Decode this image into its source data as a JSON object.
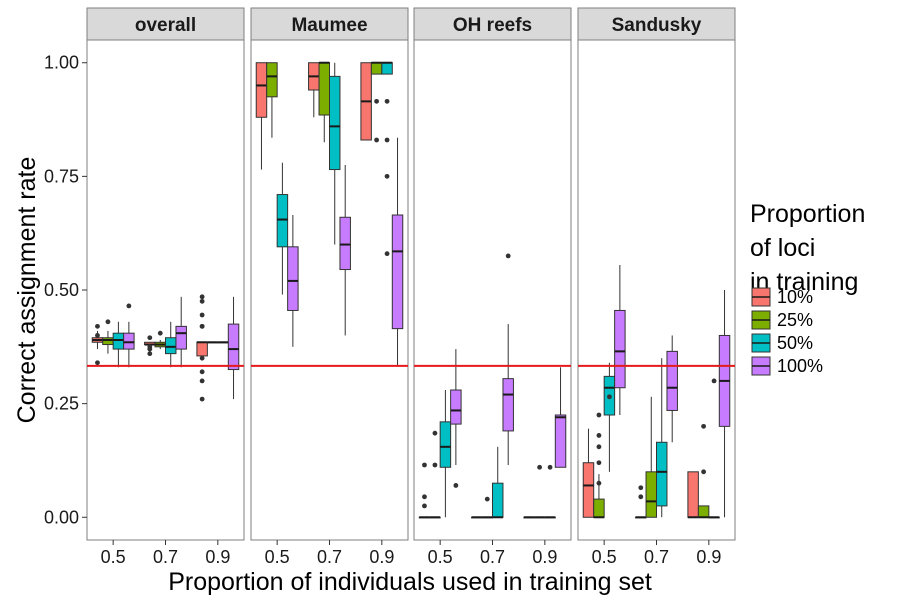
{
  "chart_data": {
    "type": "boxplot",
    "ylabel": "Correct assignment rate",
    "xlabel": "Proportion of individuals used in training set",
    "ylim": [
      -0.05,
      1.05
    ],
    "yticks": [
      "0.00",
      "0.25",
      "0.50",
      "0.75",
      "1.00"
    ],
    "xcategories": [
      "0.5",
      "0.7",
      "0.9"
    ],
    "reference_line": {
      "y": 0.333,
      "color": "#e41a1c"
    },
    "grid": false,
    "legend": {
      "title_lines": [
        "Proportion",
        "of loci",
        "in training"
      ],
      "position": "right",
      "entries": [
        {
          "name": "10%",
          "color": "#F8766D"
        },
        {
          "name": "25%",
          "color": "#7CAE00"
        },
        {
          "name": "50%",
          "color": "#00BFC4"
        },
        {
          "name": "100%",
          "color": "#C77CFF"
        }
      ]
    },
    "panels": [
      {
        "title": "overall",
        "groups": [
          {
            "x": "0.5",
            "boxes": [
              {
                "series": "10%",
                "q1": 0.385,
                "median": 0.39,
                "q3": 0.395,
                "wlo": 0.37,
                "whi": 0.41,
                "outliers": [
                  0.42,
                  0.4,
                  0.34
                ]
              },
              {
                "series": "25%",
                "q1": 0.38,
                "median": 0.39,
                "q3": 0.395,
                "wlo": 0.36,
                "whi": 0.41,
                "outliers": [
                  0.43
                ]
              },
              {
                "series": "50%",
                "q1": 0.37,
                "median": 0.39,
                "q3": 0.405,
                "wlo": 0.33,
                "whi": 0.43,
                "outliers": []
              },
              {
                "series": "100%",
                "q1": 0.37,
                "median": 0.385,
                "q3": 0.405,
                "wlo": 0.33,
                "whi": 0.43,
                "outliers": [
                  0.465
                ]
              }
            ]
          },
          {
            "x": "0.7",
            "boxes": [
              {
                "series": "10%",
                "q1": 0.38,
                "median": 0.38,
                "q3": 0.385,
                "wlo": 0.38,
                "whi": 0.385,
                "outliers": [
                  0.395,
                  0.375,
                  0.37,
                  0.36
                ]
              },
              {
                "series": "25%",
                "q1": 0.375,
                "median": 0.38,
                "q3": 0.385,
                "wlo": 0.37,
                "whi": 0.39,
                "outliers": [
                  0.405
                ]
              },
              {
                "series": "50%",
                "q1": 0.36,
                "median": 0.375,
                "q3": 0.395,
                "wlo": 0.33,
                "whi": 0.43,
                "outliers": []
              },
              {
                "series": "100%",
                "q1": 0.37,
                "median": 0.405,
                "q3": 0.42,
                "wlo": 0.33,
                "whi": 0.485,
                "outliers": []
              }
            ]
          },
          {
            "x": "0.9",
            "boxes": [
              {
                "series": "10%",
                "q1": 0.355,
                "median": 0.385,
                "q3": 0.385,
                "wlo": 0.355,
                "whi": 0.385,
                "outliers": [
                  0.485,
                  0.475,
                  0.445,
                  0.42,
                  0.42,
                  0.35,
                  0.32,
                  0.3,
                  0.26
                ]
              },
              {
                "series": "25%",
                "q1": 0.385,
                "median": 0.385,
                "q3": 0.385,
                "wlo": 0.385,
                "whi": 0.385,
                "outliers": []
              },
              {
                "series": "50%",
                "q1": 0.385,
                "median": 0.385,
                "q3": 0.385,
                "wlo": 0.385,
                "whi": 0.385,
                "outliers": []
              },
              {
                "series": "100%",
                "q1": 0.325,
                "median": 0.37,
                "q3": 0.425,
                "wlo": 0.26,
                "whi": 0.485,
                "outliers": []
              }
            ]
          }
        ]
      },
      {
        "title": "Maumee",
        "groups": [
          {
            "x": "0.5",
            "boxes": [
              {
                "series": "10%",
                "q1": 0.88,
                "median": 0.95,
                "q3": 1.0,
                "wlo": 0.765,
                "whi": 1.0,
                "outliers": []
              },
              {
                "series": "25%",
                "q1": 0.925,
                "median": 0.97,
                "q3": 1.0,
                "wlo": 0.835,
                "whi": 1.0,
                "outliers": []
              },
              {
                "series": "50%",
                "q1": 0.595,
                "median": 0.655,
                "q3": 0.71,
                "wlo": 0.49,
                "whi": 0.78,
                "outliers": []
              },
              {
                "series": "100%",
                "q1": 0.455,
                "median": 0.52,
                "q3": 0.595,
                "wlo": 0.375,
                "whi": 0.665,
                "outliers": []
              }
            ]
          },
          {
            "x": "0.7",
            "boxes": [
              {
                "series": "10%",
                "q1": 0.94,
                "median": 0.97,
                "q3": 1.0,
                "wlo": 0.88,
                "whi": 1.0,
                "outliers": []
              },
              {
                "series": "25%",
                "q1": 0.885,
                "median": 1.0,
                "q3": 1.0,
                "wlo": 0.825,
                "whi": 1.0,
                "outliers": []
              },
              {
                "series": "50%",
                "q1": 0.765,
                "median": 0.86,
                "q3": 0.97,
                "wlo": 0.6,
                "whi": 1.0,
                "outliers": []
              },
              {
                "series": "100%",
                "q1": 0.545,
                "median": 0.6,
                "q3": 0.66,
                "wlo": 0.4,
                "whi": 0.775,
                "outliers": []
              }
            ]
          },
          {
            "x": "0.9",
            "boxes": [
              {
                "series": "10%",
                "q1": 0.83,
                "median": 0.915,
                "q3": 1.0,
                "wlo": 0.83,
                "whi": 1.0,
                "outliers": []
              },
              {
                "series": "25%",
                "q1": 0.975,
                "median": 1.0,
                "q3": 1.0,
                "wlo": 0.975,
                "whi": 1.0,
                "outliers": [
                  0.915,
                  0.83
                ]
              },
              {
                "series": "50%",
                "q1": 0.975,
                "median": 1.0,
                "q3": 1.0,
                "wlo": 0.975,
                "whi": 1.0,
                "outliers": [
                  0.915,
                  0.83,
                  0.75,
                  0.58
                ]
              },
              {
                "series": "100%",
                "q1": 0.415,
                "median": 0.585,
                "q3": 0.665,
                "wlo": 0.335,
                "whi": 0.835,
                "outliers": []
              }
            ]
          }
        ]
      },
      {
        "title": "OH reefs",
        "groups": [
          {
            "x": "0.5",
            "boxes": [
              {
                "series": "10%",
                "q1": 0.0,
                "median": 0.0,
                "q3": 0.0,
                "wlo": 0.0,
                "whi": 0.0,
                "outliers": [
                  0.115,
                  0.045,
                  0.025
                ]
              },
              {
                "series": "25%",
                "q1": 0.0,
                "median": 0.0,
                "q3": 0.0,
                "wlo": 0.0,
                "whi": 0.0,
                "outliers": [
                  0.185,
                  0.115
                ]
              },
              {
                "series": "50%",
                "q1": 0.11,
                "median": 0.155,
                "q3": 0.21,
                "wlo": 0.0,
                "whi": 0.28,
                "outliers": []
              },
              {
                "series": "100%",
                "q1": 0.205,
                "median": 0.235,
                "q3": 0.28,
                "wlo": 0.115,
                "whi": 0.37,
                "outliers": [
                  0.07
                ]
              }
            ]
          },
          {
            "x": "0.7",
            "boxes": [
              {
                "series": "10%",
                "q1": 0.0,
                "median": 0.0,
                "q3": 0.0,
                "wlo": 0.0,
                "whi": 0.0,
                "outliers": []
              },
              {
                "series": "25%",
                "q1": 0.0,
                "median": 0.0,
                "q3": 0.0,
                "wlo": 0.0,
                "whi": 0.0,
                "outliers": [
                  0.04
                ]
              },
              {
                "series": "50%",
                "q1": 0.0,
                "median": 0.0,
                "q3": 0.075,
                "wlo": 0.0,
                "whi": 0.155,
                "outliers": []
              },
              {
                "series": "100%",
                "q1": 0.19,
                "median": 0.27,
                "q3": 0.305,
                "wlo": 0.115,
                "whi": 0.425,
                "outliers": [
                  0.575
                ]
              }
            ]
          },
          {
            "x": "0.9",
            "boxes": [
              {
                "series": "10%",
                "q1": 0.0,
                "median": 0.0,
                "q3": 0.0,
                "wlo": 0.0,
                "whi": 0.0,
                "outliers": []
              },
              {
                "series": "25%",
                "q1": 0.0,
                "median": 0.0,
                "q3": 0.0,
                "wlo": 0.0,
                "whi": 0.0,
                "outliers": [
                  0.11
                ]
              },
              {
                "series": "50%",
                "q1": 0.0,
                "median": 0.0,
                "q3": 0.0,
                "wlo": 0.0,
                "whi": 0.0,
                "outliers": [
                  0.11
                ]
              },
              {
                "series": "100%",
                "q1": 0.11,
                "median": 0.22,
                "q3": 0.225,
                "wlo": 0.11,
                "whi": 0.33,
                "outliers": []
              }
            ]
          }
        ]
      },
      {
        "title": "Sandusky",
        "groups": [
          {
            "x": "0.5",
            "boxes": [
              {
                "series": "10%",
                "q1": 0.0,
                "median": 0.07,
                "q3": 0.12,
                "wlo": 0.0,
                "whi": 0.195,
                "outliers": []
              },
              {
                "series": "25%",
                "q1": 0.0,
                "median": 0.0,
                "q3": 0.04,
                "wlo": 0.0,
                "whi": 0.095,
                "outliers": [
                  0.225,
                  0.18,
                  0.155,
                  0.12,
                  0.075
                ]
              },
              {
                "series": "50%",
                "q1": 0.225,
                "median": 0.285,
                "q3": 0.31,
                "wlo": 0.1,
                "whi": 0.34,
                "outliers": [
                  0.265
                ]
              },
              {
                "series": "100%",
                "q1": 0.285,
                "median": 0.365,
                "q3": 0.455,
                "wlo": 0.225,
                "whi": 0.555,
                "outliers": []
              }
            ]
          },
          {
            "x": "0.7",
            "boxes": [
              {
                "series": "10%",
                "q1": 0.0,
                "median": 0.0,
                "q3": 0.0,
                "wlo": 0.0,
                "whi": 0.0,
                "outliers": [
                  0.065,
                  0.045
                ]
              },
              {
                "series": "25%",
                "q1": 0.0,
                "median": 0.035,
                "q3": 0.1,
                "wlo": 0.0,
                "whi": 0.265,
                "outliers": []
              },
              {
                "series": "50%",
                "q1": 0.025,
                "median": 0.1,
                "q3": 0.165,
                "wlo": 0.0,
                "whi": 0.35,
                "outliers": []
              },
              {
                "series": "100%",
                "q1": 0.235,
                "median": 0.285,
                "q3": 0.365,
                "wlo": 0.165,
                "whi": 0.4,
                "outliers": []
              }
            ]
          },
          {
            "x": "0.9",
            "boxes": [
              {
                "series": "10%",
                "q1": 0.0,
                "median": 0.0,
                "q3": 0.1,
                "wlo": 0.0,
                "whi": 0.1,
                "outliers": []
              },
              {
                "series": "25%",
                "q1": 0.0,
                "median": 0.0,
                "q3": 0.025,
                "wlo": 0.0,
                "whi": 0.025,
                "outliers": [
                  0.2,
                  0.1
                ]
              },
              {
                "series": "50%",
                "q1": 0.0,
                "median": 0.0,
                "q3": 0.0,
                "wlo": 0.0,
                "whi": 0.0,
                "outliers": [
                  0.3
                ]
              },
              {
                "series": "100%",
                "q1": 0.2,
                "median": 0.3,
                "q3": 0.4,
                "wlo": 0.0,
                "whi": 0.5,
                "outliers": []
              }
            ]
          }
        ]
      }
    ]
  }
}
